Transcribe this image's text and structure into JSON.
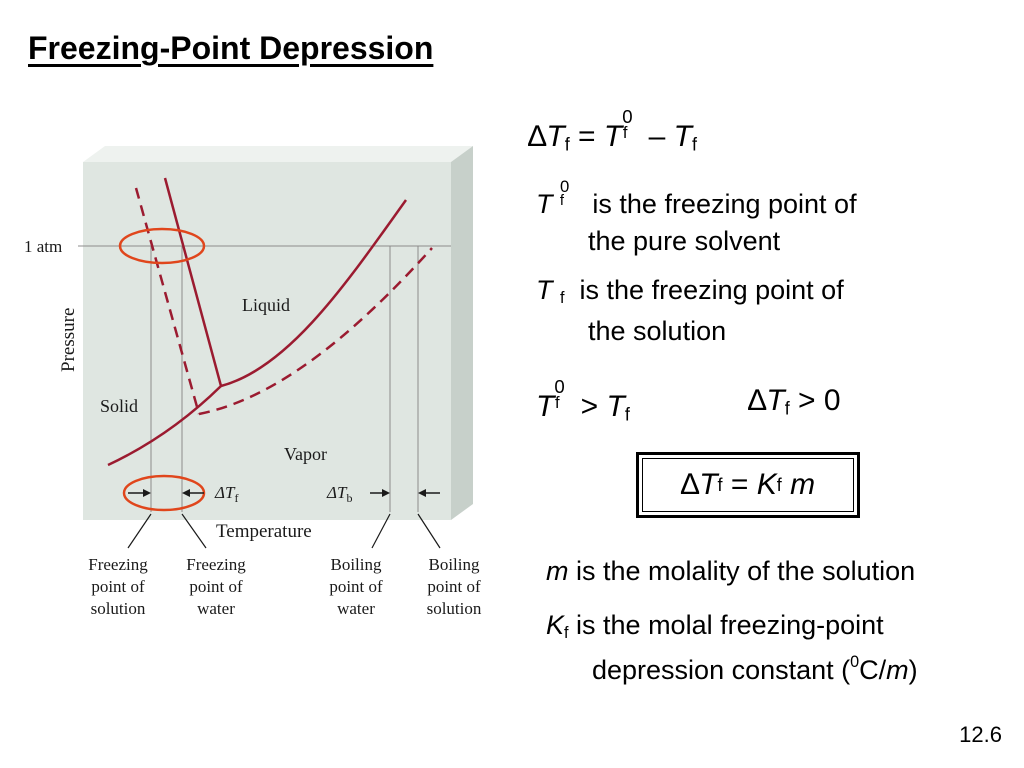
{
  "slide": {
    "title": "Freezing-Point Depression",
    "number": "12.6"
  },
  "equations": {
    "delta": "∆",
    "T": "T",
    "sub_f": "f",
    "sup_0": "0",
    "equals": "=",
    "minus": "–",
    "greater": ">",
    "zero": "0",
    "K": "K",
    "m": "m"
  },
  "definitions": {
    "tf0_line1": "is the freezing point of",
    "tf0_line2": "the pure solvent",
    "tf_line1": "is the freezing point of",
    "tf_line2": "the solution",
    "m_desc": "is the molality of the solution",
    "kf_line1": "is the molal freezing-point",
    "kf_line2_pre": "depression constant (",
    "kf_unit_sup": "0",
    "kf_unit_c": "C/",
    "kf_unit_m": "m",
    "kf_close": ")"
  },
  "diagram": {
    "pressure_label": "Pressure",
    "atm_label": "1 atm",
    "liquid_label": "Liquid",
    "solid_label": "Solid",
    "vapor_label": "Vapor",
    "temperature_label": "Temperature",
    "delta_tf": "ΔT",
    "delta_tf_sub": "f",
    "delta_tb": "ΔT",
    "delta_tb_sub": "b",
    "fp_solution": [
      "Freezing",
      "point of",
      "solution"
    ],
    "fp_water": [
      "Freezing",
      "point of",
      "water"
    ],
    "bp_water": [
      "Boiling",
      "point of",
      "water"
    ],
    "bp_solution": [
      "Boiling",
      "point of",
      "solution"
    ],
    "colors": {
      "curve": "#9b1b30",
      "highlight": "#e0461c",
      "panel": "#dfe6e1"
    }
  }
}
